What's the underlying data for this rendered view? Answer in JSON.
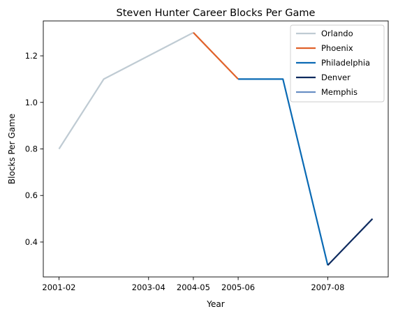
{
  "chart_data": {
    "type": "line",
    "title": "Steven Hunter Career Blocks Per Game",
    "xlabel": "Year",
    "ylabel": "Blocks Per Game",
    "x_ticks": [
      "2001-02",
      "2003-04",
      "2004-05",
      "2005-06",
      "2007-08"
    ],
    "y_ticks": [
      "0.4",
      "0.6",
      "0.8",
      "1.0",
      "1.2"
    ],
    "ylim": [
      0.25,
      1.35
    ],
    "grid": false,
    "legend_position": "top-right",
    "series": [
      {
        "name": "Orlando",
        "color": "#bfcbd3",
        "points": [
          {
            "x": "2001-02",
            "y": 0.8
          },
          {
            "x": "2002-03",
            "y": 1.1
          },
          {
            "x": "2004-05",
            "y": 1.3
          }
        ]
      },
      {
        "name": "Phoenix",
        "color": "#e0622a",
        "points": [
          {
            "x": "2004-05",
            "y": 1.3
          },
          {
            "x": "2005-06",
            "y": 1.1
          }
        ]
      },
      {
        "name": "Philadelphia",
        "color": "#0a6ab4",
        "points": [
          {
            "x": "2005-06",
            "y": 1.1
          },
          {
            "x": "2006-07",
            "y": 1.1
          },
          {
            "x": "2007-08",
            "y": 0.3
          }
        ]
      },
      {
        "name": "Denver",
        "color": "#0d2a5e",
        "points": [
          {
            "x": "2007-08",
            "y": 0.3
          },
          {
            "x": "2008-09",
            "y": 0.5
          }
        ]
      },
      {
        "name": "Memphis",
        "color": "#6a8fc4",
        "points": []
      }
    ]
  }
}
